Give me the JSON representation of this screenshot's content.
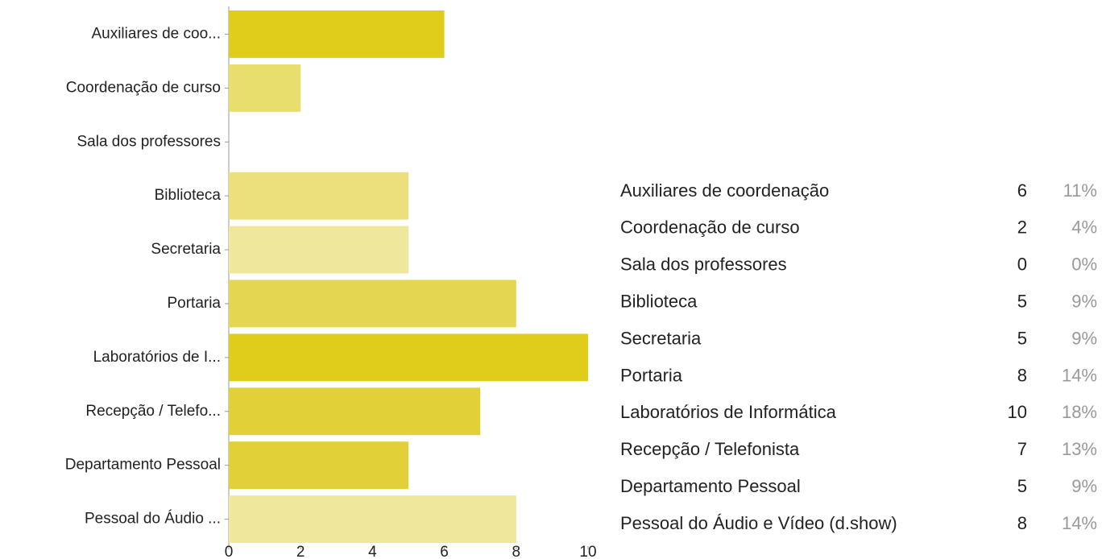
{
  "chart_data": {
    "type": "bar",
    "orientation": "horizontal",
    "categories": [
      "Auxiliares de coo...",
      "Coordenação de curso",
      "Sala dos professores",
      "Biblioteca",
      "Secretaria",
      "Portaria",
      "Laboratórios de I...",
      "Recepção / Telefo...",
      "Departamento Pessoal",
      "Pessoal do Áudio ..."
    ],
    "values": [
      6,
      2,
      0,
      5,
      5,
      8,
      10,
      7,
      5,
      8
    ],
    "colors": [
      "#e0cc1a",
      "#e8de6e",
      "#e8de6e",
      "#ebe07c",
      "#efe79c",
      "#e4d650",
      "#e0cc1a",
      "#e2d038",
      "#e2d038",
      "#efe79c"
    ],
    "xlim": [
      0,
      10
    ],
    "xticks": [
      0,
      2,
      4,
      6,
      8,
      10
    ]
  },
  "table": {
    "rows": [
      [
        "Auxiliares de coordenação",
        "6",
        "11%"
      ],
      [
        "Coordenação de curso",
        "2",
        "4%"
      ],
      [
        "Sala dos professores",
        "0",
        "0%"
      ],
      [
        "Biblioteca",
        "5",
        "9%"
      ],
      [
        "Secretaria",
        "5",
        "9%"
      ],
      [
        "Portaria",
        "8",
        "14%"
      ],
      [
        "Laboratórios de Informática",
        "10",
        "18%"
      ],
      [
        "Recepção / Telefonista",
        "7",
        "13%"
      ],
      [
        "Departamento Pessoal",
        "5",
        "9%"
      ],
      [
        "Pessoal do Áudio e Vídeo (d.show)",
        "8",
        "14%"
      ]
    ]
  }
}
